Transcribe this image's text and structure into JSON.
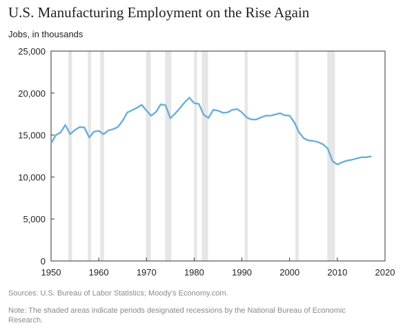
{
  "chart_data": {
    "type": "line",
    "title": "U.S. Manufacturing Employment on the Rise Again",
    "ylabel": "Jobs, in thousands",
    "xlabel": "",
    "xlim": [
      1950,
      2020
    ],
    "ylim": [
      0,
      25000
    ],
    "x_ticks": [
      "1950",
      "1960",
      "1970",
      "1980",
      "1990",
      "2000",
      "2010",
      "2020"
    ],
    "y_ticks": [
      "0",
      "5,000",
      "10,000",
      "15,000",
      "20,000",
      "25,000"
    ],
    "x_tick_values": [
      1950,
      1960,
      1970,
      1980,
      1990,
      2000,
      2010,
      2020
    ],
    "y_tick_values": [
      0,
      5000,
      10000,
      15000,
      20000,
      25000
    ],
    "grid": false,
    "legend": "none",
    "line_color": "#6aaed6",
    "recession_color": "#e6e6e6",
    "recessions": [
      [
        1953.6,
        1954.4
      ],
      [
        1957.7,
        1958.4
      ],
      [
        1960.3,
        1961.1
      ],
      [
        1969.9,
        1970.9
      ],
      [
        1973.9,
        1975.2
      ],
      [
        1980.0,
        1980.6
      ],
      [
        1981.6,
        1982.9
      ],
      [
        1990.6,
        1991.2
      ],
      [
        2001.2,
        2001.9
      ],
      [
        2007.9,
        2009.5
      ]
    ],
    "x": [
      1950,
      1951,
      1952,
      1953,
      1954,
      1955,
      1956,
      1957,
      1958,
      1959,
      1960,
      1961,
      1962,
      1963,
      1964,
      1965,
      1966,
      1967,
      1968,
      1969,
      1970,
      1971,
      1972,
      1973,
      1974,
      1975,
      1976,
      1977,
      1978,
      1979,
      1980,
      1981,
      1982,
      1983,
      1984,
      1985,
      1986,
      1987,
      1988,
      1989,
      1990,
      1991,
      1992,
      1993,
      1994,
      1995,
      1996,
      1997,
      1998,
      1999,
      2000,
      2001,
      2002,
      2003,
      2004,
      2005,
      2006,
      2007,
      2008,
      2009,
      2010,
      2011,
      2012,
      2013,
      2014,
      2015,
      2016,
      2017
    ],
    "values": [
      14000,
      15000,
      15300,
      16200,
      15100,
      15600,
      15950,
      15900,
      14700,
      15400,
      15500,
      15100,
      15550,
      15700,
      15950,
      16700,
      17700,
      17950,
      18250,
      18600,
      17900,
      17300,
      17750,
      18650,
      18550,
      17000,
      17550,
      18200,
      18900,
      19450,
      18800,
      18700,
      17400,
      17050,
      18000,
      17900,
      17650,
      17700,
      18000,
      18100,
      17700,
      17100,
      16850,
      16850,
      17100,
      17300,
      17300,
      17450,
      17600,
      17350,
      17300,
      16500,
      15300,
      14600,
      14350,
      14300,
      14150,
      13900,
      13400,
      11900,
      11500,
      11750,
      11950,
      12050,
      12200,
      12350,
      12350,
      12450
    ]
  },
  "footer": {
    "source": "Sources: U.S. Bureau of Labor Statistics; Moody's Economy.com.",
    "note": "Note: The shaded areas indicate periods designated recessions by the National Bureau of Economic Research."
  }
}
